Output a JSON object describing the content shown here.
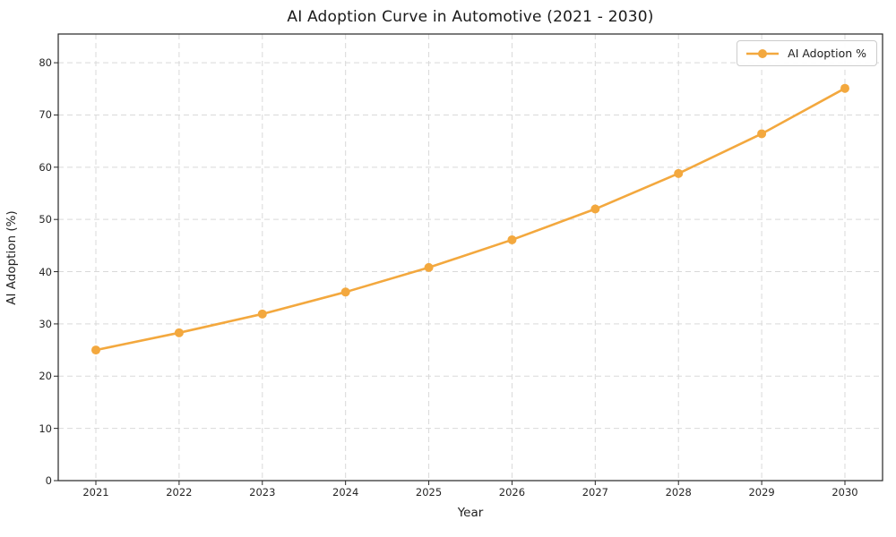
{
  "chart_data": {
    "type": "line",
    "title": "AI Adoption Curve in Automotive (2021 - 2030)",
    "xlabel": "Year",
    "ylabel": "AI Adoption (%)",
    "categories": [
      2021,
      2022,
      2023,
      2024,
      2025,
      2026,
      2027,
      2028,
      2029,
      2030
    ],
    "series": [
      {
        "name": "AI Adoption %",
        "color": "#F3A83E",
        "marker": "circle",
        "values": [
          25.0,
          28.3,
          31.9,
          36.1,
          40.8,
          46.1,
          52.0,
          58.8,
          66.4,
          75.1
        ]
      }
    ],
    "ylim": [
      0,
      85.5
    ],
    "yticks": [
      0,
      10,
      20,
      30,
      40,
      50,
      60,
      70,
      80
    ],
    "grid": "dashed",
    "grid_color": "#d9d9d9",
    "axis_color": "#262626",
    "legend_position": "upper right",
    "background_color": "#ffffff"
  }
}
